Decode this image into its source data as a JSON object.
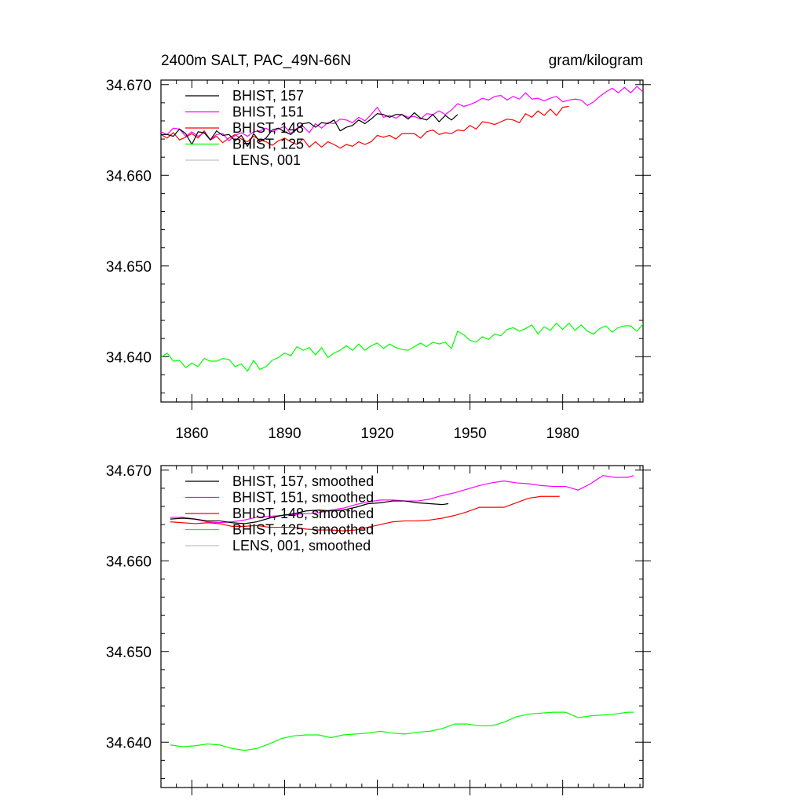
{
  "colors": {
    "BHIST, 157": "#000000",
    "BHIST, 151": "#ff00ff",
    "BHIST, 148": "#ff0000",
    "BHIST, 125": "#00ff00",
    "LENS, 001": "#c0c0c0",
    "axis": "#000000",
    "background": "#ffffff"
  },
  "chart_data": [
    {
      "type": "line",
      "title": "2400m SALT, PAC_49N-66N",
      "units": "gram/kilogram",
      "xlim": [
        1850,
        2006
      ],
      "ylim": [
        34.635,
        34.6705
      ],
      "x_ticks": [
        1860,
        1890,
        1920,
        1950,
        1980
      ],
      "x_tick_labels": [
        "1860",
        "1890",
        "1920",
        "1950",
        "1980"
      ],
      "y_ticks": [
        34.64,
        34.65,
        34.66,
        34.67
      ],
      "y_tick_labels": [
        "34.640",
        "34.650",
        "34.660",
        "34.670"
      ],
      "legend_position": "top-left",
      "series": [
        {
          "name": "BHIST, 157",
          "x": [
            1850,
            1852,
            1854,
            1856,
            1858,
            1860,
            1862,
            1864,
            1866,
            1868,
            1870,
            1872,
            1874,
            1876,
            1878,
            1880,
            1882,
            1884,
            1886,
            1888,
            1890,
            1892,
            1894,
            1896,
            1898,
            1900,
            1902,
            1904,
            1906,
            1908,
            1910,
            1912,
            1914,
            1916,
            1918,
            1920,
            1922,
            1924,
            1926,
            1928,
            1930,
            1932,
            1934,
            1936,
            1938,
            1940,
            1942,
            1944,
            1946
          ],
          "values": [
            34.6645,
            34.6645,
            34.6643,
            34.6651,
            34.6646,
            34.6634,
            34.6648,
            34.6647,
            34.6639,
            34.6649,
            34.6644,
            34.6645,
            34.6638,
            34.6644,
            34.6632,
            34.6646,
            34.6637,
            34.6641,
            34.665,
            34.6652,
            34.6648,
            34.6645,
            34.6651,
            34.6657,
            34.6658,
            34.6653,
            34.6658,
            34.6657,
            34.6661,
            34.6649,
            34.6653,
            34.6655,
            34.6661,
            34.6657,
            34.6662,
            34.6668,
            34.6667,
            34.6664,
            34.6667,
            34.6667,
            34.6662,
            34.6669,
            34.6663,
            34.6661,
            34.6667,
            34.6659,
            34.6666,
            34.6661,
            34.6667
          ]
        },
        {
          "name": "BHIST, 151",
          "x": [
            1850,
            1852,
            1854,
            1856,
            1858,
            1860,
            1862,
            1864,
            1866,
            1868,
            1870,
            1872,
            1874,
            1876,
            1878,
            1880,
            1882,
            1884,
            1886,
            1888,
            1890,
            1892,
            1894,
            1896,
            1898,
            1900,
            1902,
            1904,
            1906,
            1908,
            1910,
            1912,
            1914,
            1916,
            1918,
            1920,
            1922,
            1924,
            1926,
            1928,
            1930,
            1932,
            1934,
            1936,
            1938,
            1940,
            1942,
            1944,
            1946,
            1948,
            1950,
            1952,
            1954,
            1956,
            1958,
            1960,
            1962,
            1964,
            1966,
            1968,
            1970,
            1972,
            1974,
            1976,
            1978,
            1980,
            1982,
            1984,
            1986,
            1988,
            1990,
            1992,
            1994,
            1996,
            1998,
            2000,
            2002,
            2004,
            2006
          ],
          "values": [
            34.6648,
            34.6645,
            34.6652,
            34.6651,
            34.6643,
            34.6648,
            34.6643,
            34.6647,
            34.6639,
            34.6645,
            34.6646,
            34.6638,
            34.6644,
            34.6647,
            34.6643,
            34.6648,
            34.6649,
            34.6652,
            34.6648,
            34.6651,
            34.6654,
            34.6646,
            34.6652,
            34.6654,
            34.6647,
            34.6657,
            34.6652,
            34.6658,
            34.6657,
            34.6662,
            34.6661,
            34.6658,
            34.6664,
            34.666,
            34.6667,
            34.6675,
            34.6664,
            34.6666,
            34.6663,
            34.6667,
            34.6664,
            34.6665,
            34.6662,
            34.6668,
            34.6667,
            34.6671,
            34.6667,
            34.6672,
            34.6679,
            34.6676,
            34.6678,
            34.6681,
            34.6685,
            34.6683,
            34.6687,
            34.6688,
            34.6683,
            34.6687,
            34.6684,
            34.6691,
            34.6684,
            34.6685,
            34.6682,
            34.6685,
            34.6687,
            34.6681,
            34.6683,
            34.6684,
            34.6683,
            34.6677,
            34.6681,
            34.6687,
            34.6692,
            34.6696,
            34.6691,
            34.6697,
            34.6691,
            34.6698,
            34.6692
          ]
        },
        {
          "name": "BHIST, 148",
          "x": [
            1850,
            1852,
            1854,
            1856,
            1858,
            1860,
            1862,
            1864,
            1866,
            1868,
            1870,
            1872,
            1874,
            1876,
            1878,
            1880,
            1882,
            1884,
            1886,
            1888,
            1890,
            1892,
            1894,
            1896,
            1898,
            1900,
            1902,
            1904,
            1906,
            1908,
            1910,
            1912,
            1914,
            1916,
            1918,
            1920,
            1922,
            1924,
            1926,
            1928,
            1930,
            1932,
            1934,
            1936,
            1938,
            1940,
            1942,
            1944,
            1946,
            1948,
            1950,
            1952,
            1954,
            1956,
            1958,
            1960,
            1962,
            1964,
            1966,
            1968,
            1970,
            1972,
            1974,
            1976,
            1978,
            1980,
            1982
          ],
          "values": [
            34.6645,
            34.6641,
            34.6647,
            34.6639,
            34.6642,
            34.6646,
            34.6641,
            34.6649,
            34.6639,
            34.6643,
            34.6636,
            34.6641,
            34.6645,
            34.664,
            34.6637,
            34.6643,
            34.6639,
            34.6637,
            34.6633,
            34.6638,
            34.6641,
            34.6637,
            34.6634,
            34.664,
            34.6631,
            34.6637,
            34.6631,
            34.6637,
            34.6634,
            34.663,
            34.6634,
            34.6632,
            34.6637,
            34.6634,
            34.6637,
            34.6644,
            34.6642,
            34.6644,
            34.664,
            34.6646,
            34.6646,
            34.6646,
            34.6641,
            34.6648,
            34.665,
            34.6645,
            34.6647,
            34.6646,
            34.665,
            34.6649,
            34.6655,
            34.6651,
            34.6659,
            34.6658,
            34.6656,
            34.6659,
            34.6662,
            34.6661,
            34.6658,
            34.6668,
            34.6664,
            34.6671,
            34.6666,
            34.6673,
            34.6666,
            34.6675,
            34.6676
          ]
        },
        {
          "name": "BHIST, 125",
          "x": [
            1850,
            1852,
            1854,
            1856,
            1858,
            1860,
            1862,
            1864,
            1866,
            1868,
            1870,
            1872,
            1874,
            1876,
            1878,
            1880,
            1882,
            1884,
            1886,
            1888,
            1890,
            1892,
            1894,
            1896,
            1898,
            1900,
            1902,
            1904,
            1906,
            1908,
            1910,
            1912,
            1914,
            1916,
            1918,
            1920,
            1922,
            1924,
            1926,
            1928,
            1930,
            1932,
            1934,
            1936,
            1938,
            1940,
            1942,
            1944,
            1946,
            1948,
            1950,
            1952,
            1954,
            1956,
            1958,
            1960,
            1962,
            1964,
            1966,
            1968,
            1970,
            1972,
            1974,
            1976,
            1978,
            1980,
            1982,
            1984,
            1986,
            1988,
            1990,
            1992,
            1994,
            1996,
            1998,
            2000,
            2002,
            2004,
            2006
          ],
          "values": [
            34.6399,
            34.6404,
            34.6395,
            34.6396,
            34.6388,
            34.6393,
            34.6389,
            34.6398,
            34.6395,
            34.6395,
            34.6398,
            34.6397,
            34.6389,
            34.6392,
            34.6384,
            34.6396,
            34.6386,
            34.6389,
            34.6396,
            34.6399,
            34.6404,
            34.6401,
            34.6411,
            34.6407,
            34.641,
            34.6402,
            34.641,
            34.6399,
            34.6404,
            34.6407,
            34.6412,
            34.6407,
            34.6414,
            34.6407,
            34.6412,
            34.6415,
            34.6409,
            34.6414,
            34.641,
            34.6408,
            34.6407,
            34.6411,
            34.6415,
            34.6411,
            34.6416,
            34.6414,
            34.6416,
            34.6409,
            34.6428,
            34.6424,
            34.6418,
            34.6416,
            34.6422,
            34.6419,
            34.6425,
            34.6423,
            34.643,
            34.6432,
            34.6428,
            34.6431,
            34.6435,
            34.6425,
            34.6433,
            34.6429,
            34.6437,
            34.643,
            34.6437,
            34.6429,
            34.6435,
            34.6428,
            34.6425,
            34.6431,
            34.6434,
            34.6427,
            34.6432,
            34.6434,
            34.6434,
            34.6428,
            34.6436
          ]
        },
        {
          "name": "LENS, 001",
          "x": [],
          "values": []
        }
      ]
    },
    {
      "type": "line",
      "title": "",
      "units": "",
      "xlim": [
        1850,
        2006
      ],
      "ylim": [
        34.635,
        34.6705
      ],
      "x_ticks": [
        1860,
        1890,
        1920,
        1950,
        1980
      ],
      "x_tick_labels": [],
      "y_ticks": [
        34.64,
        34.65,
        34.66,
        34.67
      ],
      "y_tick_labels": [
        "34.640",
        "34.650",
        "34.660",
        "34.670"
      ],
      "legend_position": "top-left",
      "series": [
        {
          "name": "BHIST, 157, smoothed",
          "x": [
            1853,
            1857,
            1861,
            1865,
            1869,
            1873,
            1877,
            1881,
            1885,
            1889,
            1893,
            1897,
            1901,
            1905,
            1909,
            1913,
            1917,
            1921,
            1925,
            1929,
            1933,
            1937,
            1941,
            1943
          ],
          "values": [
            34.6646,
            34.6647,
            34.6646,
            34.6644,
            34.6644,
            34.6642,
            34.6641,
            34.6643,
            34.6647,
            34.665,
            34.6652,
            34.6655,
            34.6656,
            34.6655,
            34.6656,
            34.6659,
            34.6663,
            34.6664,
            34.6666,
            34.6666,
            34.6664,
            34.6663,
            34.6662,
            34.6663
          ]
        },
        {
          "name": "BHIST, 151, smoothed",
          "x": [
            1853,
            1857,
            1861,
            1865,
            1869,
            1873,
            1877,
            1881,
            1885,
            1889,
            1893,
            1897,
            1901,
            1905,
            1909,
            1913,
            1917,
            1921,
            1925,
            1929,
            1933,
            1937,
            1941,
            1945,
            1949,
            1953,
            1957,
            1961,
            1965,
            1969,
            1973,
            1977,
            1981,
            1985,
            1989,
            1993,
            1997,
            2001,
            2003
          ],
          "values": [
            34.6648,
            34.6648,
            34.6646,
            34.6643,
            34.6642,
            34.6643,
            34.6645,
            34.6648,
            34.6649,
            34.665,
            34.6651,
            34.6652,
            34.6653,
            34.6656,
            34.6658,
            34.6662,
            34.6665,
            34.6667,
            34.6667,
            34.6666,
            34.6666,
            34.6668,
            34.6672,
            34.6675,
            34.6679,
            34.6683,
            34.6686,
            34.6688,
            34.6686,
            34.6685,
            34.6683,
            34.6682,
            34.6682,
            34.6678,
            34.6685,
            34.6694,
            34.6692,
            34.6692,
            34.6694
          ]
        },
        {
          "name": "BHIST, 148, smoothed",
          "x": [
            1853,
            1857,
            1861,
            1865,
            1869,
            1873,
            1877,
            1881,
            1885,
            1889,
            1893,
            1897,
            1901,
            1905,
            1909,
            1913,
            1917,
            1921,
            1925,
            1929,
            1933,
            1937,
            1941,
            1945,
            1949,
            1953,
            1957,
            1961,
            1965,
            1969,
            1973,
            1977,
            1979
          ],
          "values": [
            34.6643,
            34.6642,
            34.6641,
            34.6642,
            34.6641,
            34.6638,
            34.6638,
            34.6639,
            34.6637,
            34.6637,
            34.6637,
            34.6635,
            34.6634,
            34.6634,
            34.6633,
            34.6634,
            34.6637,
            34.664,
            34.6643,
            34.6644,
            34.6644,
            34.6645,
            34.6647,
            34.665,
            34.6654,
            34.6659,
            34.6659,
            34.6659,
            34.6664,
            34.6669,
            34.6671,
            34.6671,
            34.6671
          ]
        },
        {
          "name": "BHIST, 125, smoothed",
          "x": [
            1853,
            1857,
            1861,
            1865,
            1869,
            1873,
            1877,
            1881,
            1885,
            1889,
            1893,
            1897,
            1901,
            1905,
            1909,
            1913,
            1917,
            1921,
            1925,
            1929,
            1933,
            1937,
            1941,
            1945,
            1949,
            1953,
            1957,
            1961,
            1965,
            1969,
            1973,
            1977,
            1981,
            1985,
            1989,
            1993,
            1997,
            2001,
            2003
          ],
          "values": [
            34.6397,
            34.6395,
            34.6396,
            34.6398,
            34.6397,
            34.6393,
            34.6391,
            34.6393,
            34.6398,
            34.6404,
            34.6407,
            34.6408,
            34.6408,
            34.6405,
            34.6408,
            34.6409,
            34.641,
            34.6412,
            34.641,
            34.6409,
            34.6411,
            34.6412,
            34.6415,
            34.642,
            34.642,
            34.6418,
            34.6418,
            34.6422,
            34.6428,
            34.6431,
            34.6432,
            34.6433,
            34.6433,
            34.6427,
            34.6429,
            34.643,
            34.6431,
            34.6433,
            34.6433
          ]
        },
        {
          "name": "LENS, 001, smoothed",
          "x": [],
          "values": []
        }
      ]
    }
  ]
}
